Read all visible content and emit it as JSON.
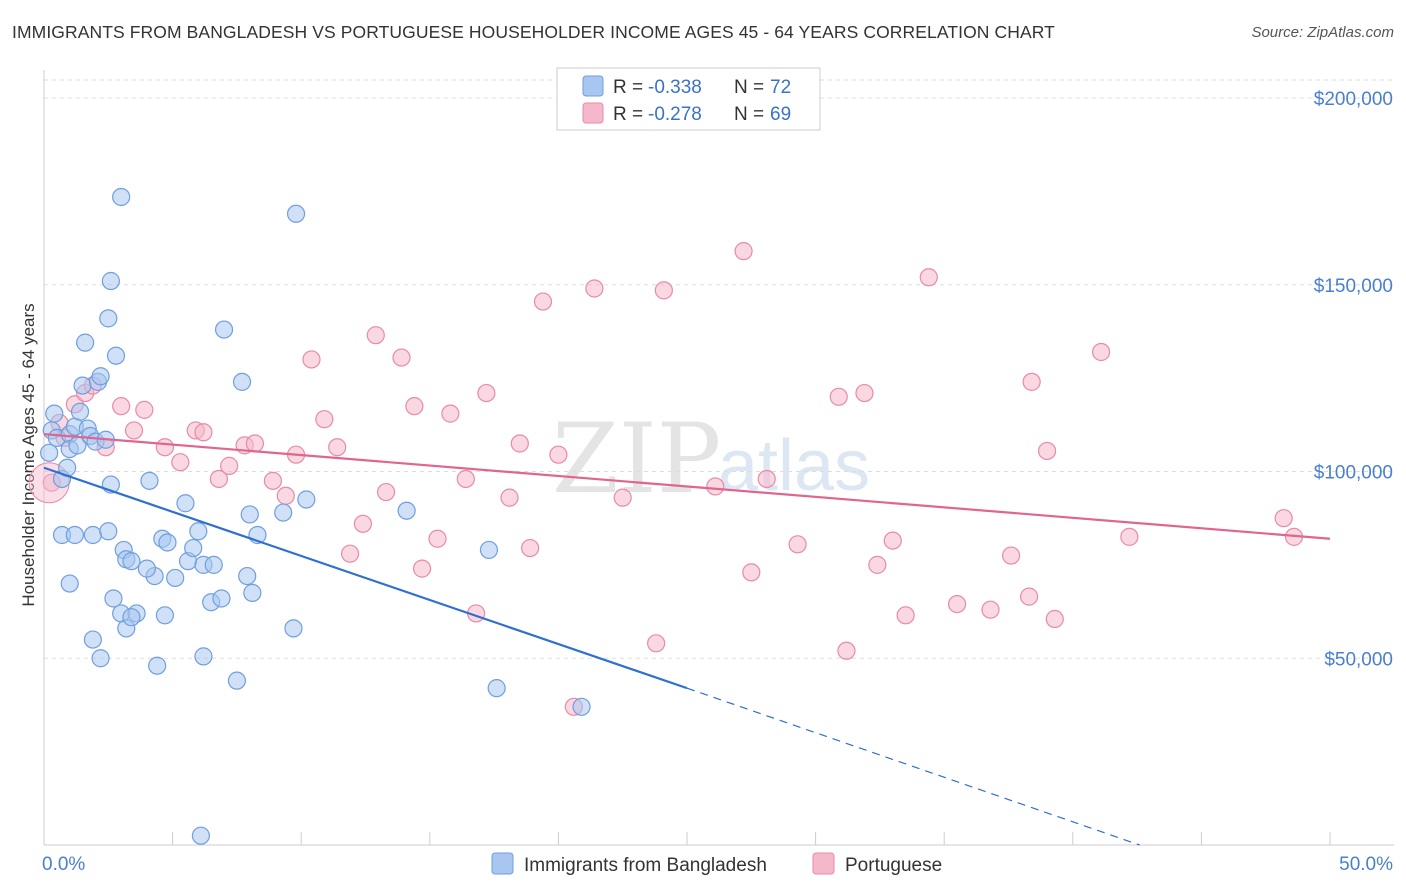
{
  "header": {
    "title": "IMMIGRANTS FROM BANGLADESH VS PORTUGUESE HOUSEHOLDER INCOME AGES 45 - 64 YEARS CORRELATION CHART",
    "source": "Source: ZipAtlas.com"
  },
  "watermark": {
    "zip": "ZIP",
    "atlas": "atlas"
  },
  "legend": {
    "r_label": "R =",
    "n_label": "N =",
    "series": [
      {
        "name": "Immigrants from Bangladesh",
        "r": "-0.338",
        "n": "72",
        "color": "#a8c6f0",
        "stroke": "#6f9fde"
      },
      {
        "name": "Portuguese",
        "r": "-0.278",
        "n": "69",
        "color": "#f5b8cb",
        "stroke": "#e88aa8"
      }
    ]
  },
  "chart_data": {
    "type": "scatter",
    "title": "IMMIGRANTS FROM BANGLADESH VS PORTUGUESE HOUSEHOLDER INCOME AGES 45 - 64 YEARS CORRELATION CHART",
    "xlabel": "",
    "ylabel": "Householder Income Ages 45 - 64 years",
    "xlim": [
      0,
      50
    ],
    "ylim": [
      0,
      200000
    ],
    "x_tick_labels": [
      "0.0%",
      "50.0%"
    ],
    "y_ticks": [
      50000,
      100000,
      150000,
      200000
    ],
    "y_tick_labels": [
      "$50,000",
      "$100,000",
      "$150,000",
      "$200,000"
    ],
    "grid": "horizontal dashed",
    "legend_position": "top-center",
    "series": [
      {
        "name": "Immigrants from Bangladesh",
        "color": "#a8c6f0",
        "stroke": "#6f9fde",
        "trend": {
          "x1": 0,
          "y1": 101000,
          "x2": 25,
          "y2": 42000,
          "dash_to_x": 42.6,
          "dash_to_y": 0
        },
        "points": [
          [
            0.2,
            105000
          ],
          [
            0.3,
            111000
          ],
          [
            0.4,
            115500
          ],
          [
            0.5,
            109000
          ],
          [
            0.7,
            98000
          ],
          [
            0.9,
            101000
          ],
          [
            1.0,
            110000
          ],
          [
            1.0,
            106000
          ],
          [
            1.2,
            112000
          ],
          [
            1.3,
            107000
          ],
          [
            1.4,
            116000
          ],
          [
            1.5,
            123000
          ],
          [
            1.6,
            134500
          ],
          [
            1.7,
            111500
          ],
          [
            1.8,
            109500
          ],
          [
            2.0,
            108000
          ],
          [
            2.1,
            124000
          ],
          [
            2.2,
            125500
          ],
          [
            2.4,
            108500
          ],
          [
            2.5,
            141000
          ],
          [
            2.6,
            151000
          ],
          [
            2.8,
            131000
          ],
          [
            3.0,
            173500
          ],
          [
            0.7,
            83000
          ],
          [
            1.2,
            83000
          ],
          [
            1.0,
            70000
          ],
          [
            1.9,
            83000
          ],
          [
            2.6,
            96500
          ],
          [
            2.5,
            84000
          ],
          [
            3.1,
            79000
          ],
          [
            3.2,
            76500
          ],
          [
            3.4,
            76000
          ],
          [
            3.0,
            62000
          ],
          [
            3.6,
            62000
          ],
          [
            3.2,
            58000
          ],
          [
            2.7,
            66000
          ],
          [
            1.9,
            55000
          ],
          [
            2.2,
            50000
          ],
          [
            4.3,
            72000
          ],
          [
            4.0,
            74000
          ],
          [
            4.6,
            82000
          ],
          [
            4.8,
            81000
          ],
          [
            4.1,
            97500
          ],
          [
            5.1,
            71500
          ],
          [
            4.4,
            48000
          ],
          [
            5.5,
            91500
          ],
          [
            5.6,
            76000
          ],
          [
            5.8,
            79500
          ],
          [
            6.0,
            84000
          ],
          [
            6.2,
            75000
          ],
          [
            6.5,
            65000
          ],
          [
            6.6,
            75000
          ],
          [
            6.9,
            66000
          ],
          [
            7.0,
            138000
          ],
          [
            7.5,
            44000
          ],
          [
            7.7,
            124000
          ],
          [
            7.9,
            72000
          ],
          [
            8.0,
            88500
          ],
          [
            8.1,
            67500
          ],
          [
            8.3,
            83000
          ],
          [
            9.3,
            89000
          ],
          [
            9.7,
            58000
          ],
          [
            9.8,
            169000
          ],
          [
            10.2,
            92500
          ],
          [
            14.1,
            89500
          ],
          [
            17.3,
            79000
          ],
          [
            17.6,
            42000
          ],
          [
            20.9,
            37000
          ],
          [
            6.2,
            50500
          ],
          [
            3.4,
            61000
          ],
          [
            4.7,
            61500
          ],
          [
            6.1,
            2500
          ]
        ]
      },
      {
        "name": "Portuguese",
        "color": "#f5b8cb",
        "stroke": "#e88aa8",
        "trend": {
          "x1": 0,
          "y1": 110000,
          "x2": 50,
          "y2": 82000
        },
        "points": [
          [
            0.3,
            97000
          ],
          [
            0.6,
            113000
          ],
          [
            0.8,
            109000
          ],
          [
            1.2,
            118000
          ],
          [
            1.6,
            121000
          ],
          [
            1.9,
            123000
          ],
          [
            2.4,
            106500
          ],
          [
            3.0,
            117500
          ],
          [
            3.5,
            111000
          ],
          [
            3.9,
            116500
          ],
          [
            4.7,
            106500
          ],
          [
            5.3,
            102500
          ],
          [
            5.9,
            111000
          ],
          [
            6.2,
            110500
          ],
          [
            6.8,
            98000
          ],
          [
            7.2,
            101500
          ],
          [
            7.8,
            107000
          ],
          [
            8.2,
            107500
          ],
          [
            8.9,
            97500
          ],
          [
            9.4,
            93500
          ],
          [
            9.8,
            104500
          ],
          [
            10.4,
            130000
          ],
          [
            10.9,
            114000
          ],
          [
            11.4,
            106500
          ],
          [
            11.9,
            78000
          ],
          [
            12.4,
            86000
          ],
          [
            12.9,
            136500
          ],
          [
            13.3,
            94500
          ],
          [
            13.9,
            130500
          ],
          [
            14.4,
            117500
          ],
          [
            14.7,
            74000
          ],
          [
            15.3,
            82000
          ],
          [
            15.8,
            115500
          ],
          [
            16.4,
            98000
          ],
          [
            16.8,
            62000
          ],
          [
            17.2,
            121000
          ],
          [
            18.1,
            93000
          ],
          [
            18.5,
            107500
          ],
          [
            18.9,
            79500
          ],
          [
            19.4,
            145500
          ],
          [
            20.0,
            104500
          ],
          [
            20.6,
            37000
          ],
          [
            21.4,
            149000
          ],
          [
            22.5,
            93000
          ],
          [
            24.1,
            148500
          ],
          [
            23.8,
            54000
          ],
          [
            26.1,
            96000
          ],
          [
            27.2,
            159000
          ],
          [
            27.5,
            73000
          ],
          [
            28.1,
            98000
          ],
          [
            29.3,
            80500
          ],
          [
            30.9,
            120000
          ],
          [
            31.2,
            52000
          ],
          [
            31.9,
            121000
          ],
          [
            32.4,
            75000
          ],
          [
            33.0,
            81500
          ],
          [
            33.5,
            61500
          ],
          [
            34.4,
            152000
          ],
          [
            35.5,
            64500
          ],
          [
            36.8,
            63000
          ],
          [
            37.6,
            77500
          ],
          [
            38.3,
            66500
          ],
          [
            38.4,
            124000
          ],
          [
            39.0,
            105500
          ],
          [
            39.3,
            60500
          ],
          [
            41.1,
            132000
          ],
          [
            42.2,
            82500
          ],
          [
            48.2,
            87500
          ],
          [
            48.6,
            82500
          ]
        ]
      }
    ]
  }
}
